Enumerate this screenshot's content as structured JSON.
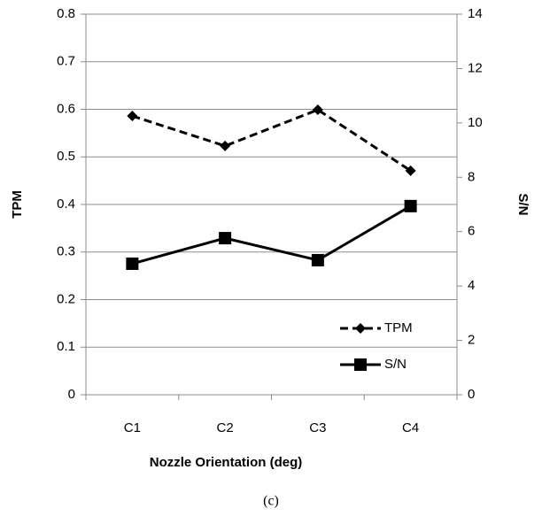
{
  "chart_data": {
    "type": "line",
    "categories": [
      "C1",
      "C2",
      "C3",
      "C4"
    ],
    "x_label": "Nozzle Orientation (deg)",
    "y_label": "TPM",
    "y2_label": "S/N",
    "caption": "(c)",
    "ylim": [
      0,
      0.8
    ],
    "yticks": [
      0,
      0.1,
      0.2,
      0.3,
      0.4,
      0.5,
      0.6,
      0.7,
      0.8
    ],
    "y2lim": [
      0,
      14
    ],
    "y2ticks": [
      0,
      2,
      4,
      6,
      8,
      10,
      12,
      14
    ],
    "grid": true,
    "legend": "lower right",
    "series": [
      {
        "name": "TPM",
        "color": "#000000",
        "dashed": true,
        "marker": "diamond",
        "values": [
          0.586,
          0.523,
          0.599,
          0.471
        ]
      },
      {
        "name": "S/N",
        "color": "#000000",
        "dashed": false,
        "marker": "square",
        "axis": "y2",
        "values": [
          4.82,
          5.76,
          4.95,
          6.94
        ]
      }
    ]
  }
}
